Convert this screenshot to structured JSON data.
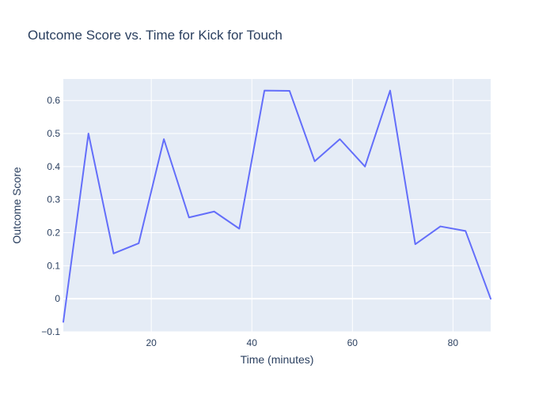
{
  "chart_data": {
    "type": "line",
    "title": "Outcome Score vs. Time for Kick for Touch",
    "xlabel": "Time (minutes)",
    "ylabel": "Outcome Score",
    "xlim": [
      2.5,
      87.5
    ],
    "ylim": [
      -0.1,
      0.665
    ],
    "x_ticks": [
      20,
      40,
      60,
      80
    ],
    "y_ticks": [
      -0.1,
      0,
      0.1,
      0.2,
      0.3,
      0.4,
      0.5,
      0.6
    ],
    "grid": true,
    "legend": "none",
    "colors": {
      "line": "#636efa",
      "plot_bg": "#e5ecf6",
      "grid": "#ffffff",
      "text": "#2a3f5f"
    },
    "series": [
      {
        "x": [
          2.5,
          7.5,
          12.5,
          17.5,
          22.5,
          27.5,
          32.5,
          37.5,
          42.5,
          47.5,
          52.5,
          57.5,
          62.5,
          67.5,
          72.5,
          77.5,
          82.5,
          87.5
        ],
        "values": [
          -0.07,
          0.5,
          0.137,
          0.168,
          0.483,
          0.246,
          0.264,
          0.212,
          0.63,
          0.629,
          0.416,
          0.483,
          0.4,
          0.63,
          0.165,
          0.219,
          0.205,
          0.0
        ]
      }
    ]
  }
}
